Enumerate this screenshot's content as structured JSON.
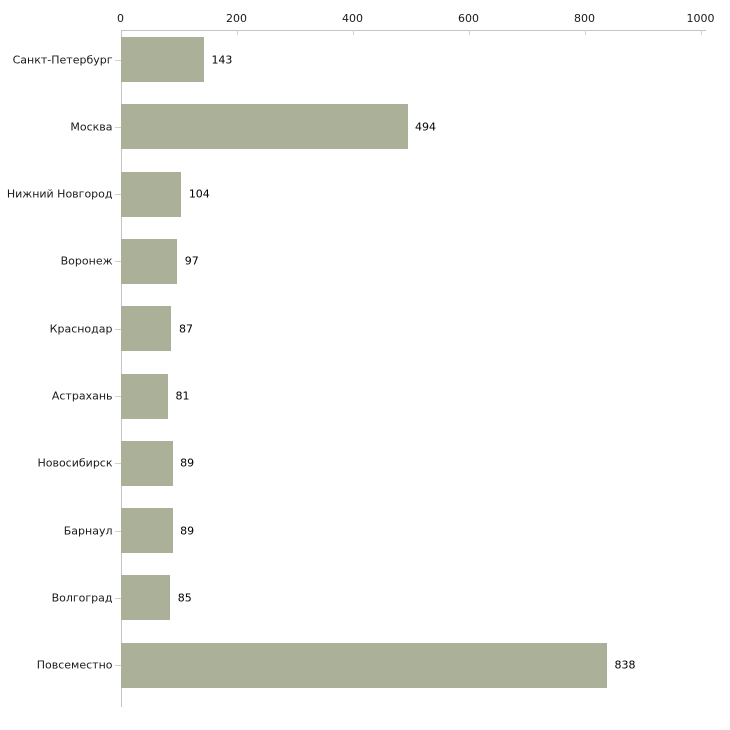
{
  "chart_data": {
    "type": "bar",
    "orientation": "horizontal",
    "title": "",
    "xlabel": "",
    "ylabel": "",
    "categories": [
      "Санкт-Петербург",
      "Москва",
      "Нижний Новгород",
      "Воронеж",
      "Краснодар",
      "Астрахань",
      "Новосибирск",
      "Барнаул",
      "Волгоград",
      "Повсеместно"
    ],
    "values": [
      143,
      494,
      104,
      97,
      87,
      81,
      89,
      89,
      85,
      838
    ],
    "value_labels": [
      "143",
      "494",
      "104",
      "97",
      "87",
      "81",
      "89",
      "89",
      "85",
      "838"
    ],
    "x_ticks": [
      0,
      200,
      400,
      600,
      800,
      1000
    ],
    "x_tick_labels": [
      "0",
      "200",
      "400",
      "600",
      "800",
      "1000"
    ],
    "xlim": [
      0,
      1000
    ],
    "grid": false,
    "legend": "none",
    "axis_position": "top",
    "colors": {
      "bar_fill": "#abb199",
      "axis_line": "#c4c4c4",
      "tick_mark": "#d9d5b2",
      "text": "#1a1a1a"
    }
  }
}
